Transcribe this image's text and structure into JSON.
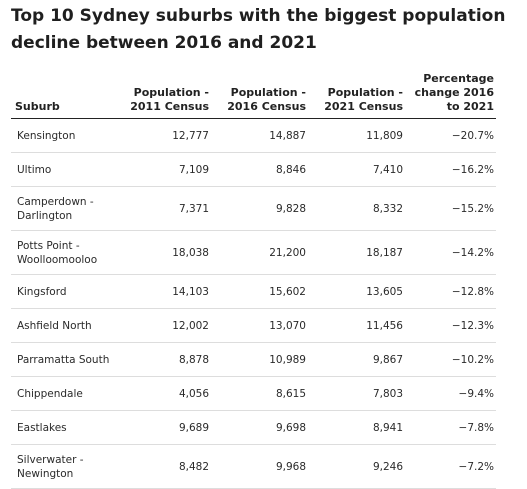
{
  "title": "Top 10 Sydney suburbs with the biggest population decline between 2016 and 2021",
  "columns": {
    "suburb": "Suburb",
    "pop2011": "Population - 2011 Census",
    "pop2016": "Population - 2016 Census",
    "pop2021": "Population - 2021 Census",
    "change": "Percentage change 2016 to 2021"
  },
  "rows": [
    {
      "suburb": "Kensington",
      "pop2011": "12,777",
      "pop2016": "14,887",
      "pop2021": "11,809",
      "change": "−20.7%"
    },
    {
      "suburb": "Ultimo",
      "pop2011": "7,109",
      "pop2016": "8,846",
      "pop2021": "7,410",
      "change": "−16.2%"
    },
    {
      "suburb": "Camperdown - Darlington",
      "pop2011": "7,371",
      "pop2016": "9,828",
      "pop2021": "8,332",
      "change": "−15.2%"
    },
    {
      "suburb": "Potts Point - Woolloomooloo",
      "pop2011": "18,038",
      "pop2016": "21,200",
      "pop2021": "18,187",
      "change": "−14.2%"
    },
    {
      "suburb": "Kingsford",
      "pop2011": "14,103",
      "pop2016": "15,602",
      "pop2021": "13,605",
      "change": "−12.8%"
    },
    {
      "suburb": "Ashfield North",
      "pop2011": "12,002",
      "pop2016": "13,070",
      "pop2021": "11,456",
      "change": "−12.3%"
    },
    {
      "suburb": "Parramatta South",
      "pop2011": "8,878",
      "pop2016": "10,989",
      "pop2021": "9,867",
      "change": "−10.2%"
    },
    {
      "suburb": "Chippendale",
      "pop2011": "4,056",
      "pop2016": "8,615",
      "pop2021": "7,803",
      "change": "−9.4%"
    },
    {
      "suburb": "Eastlakes",
      "pop2011": "9,689",
      "pop2016": "9,698",
      "pop2021": "8,941",
      "change": "−7.8%"
    },
    {
      "suburb": "Silverwater - Newington",
      "pop2011": "8,482",
      "pop2016": "9,968",
      "pop2021": "9,246",
      "change": "−7.2%"
    }
  ]
}
